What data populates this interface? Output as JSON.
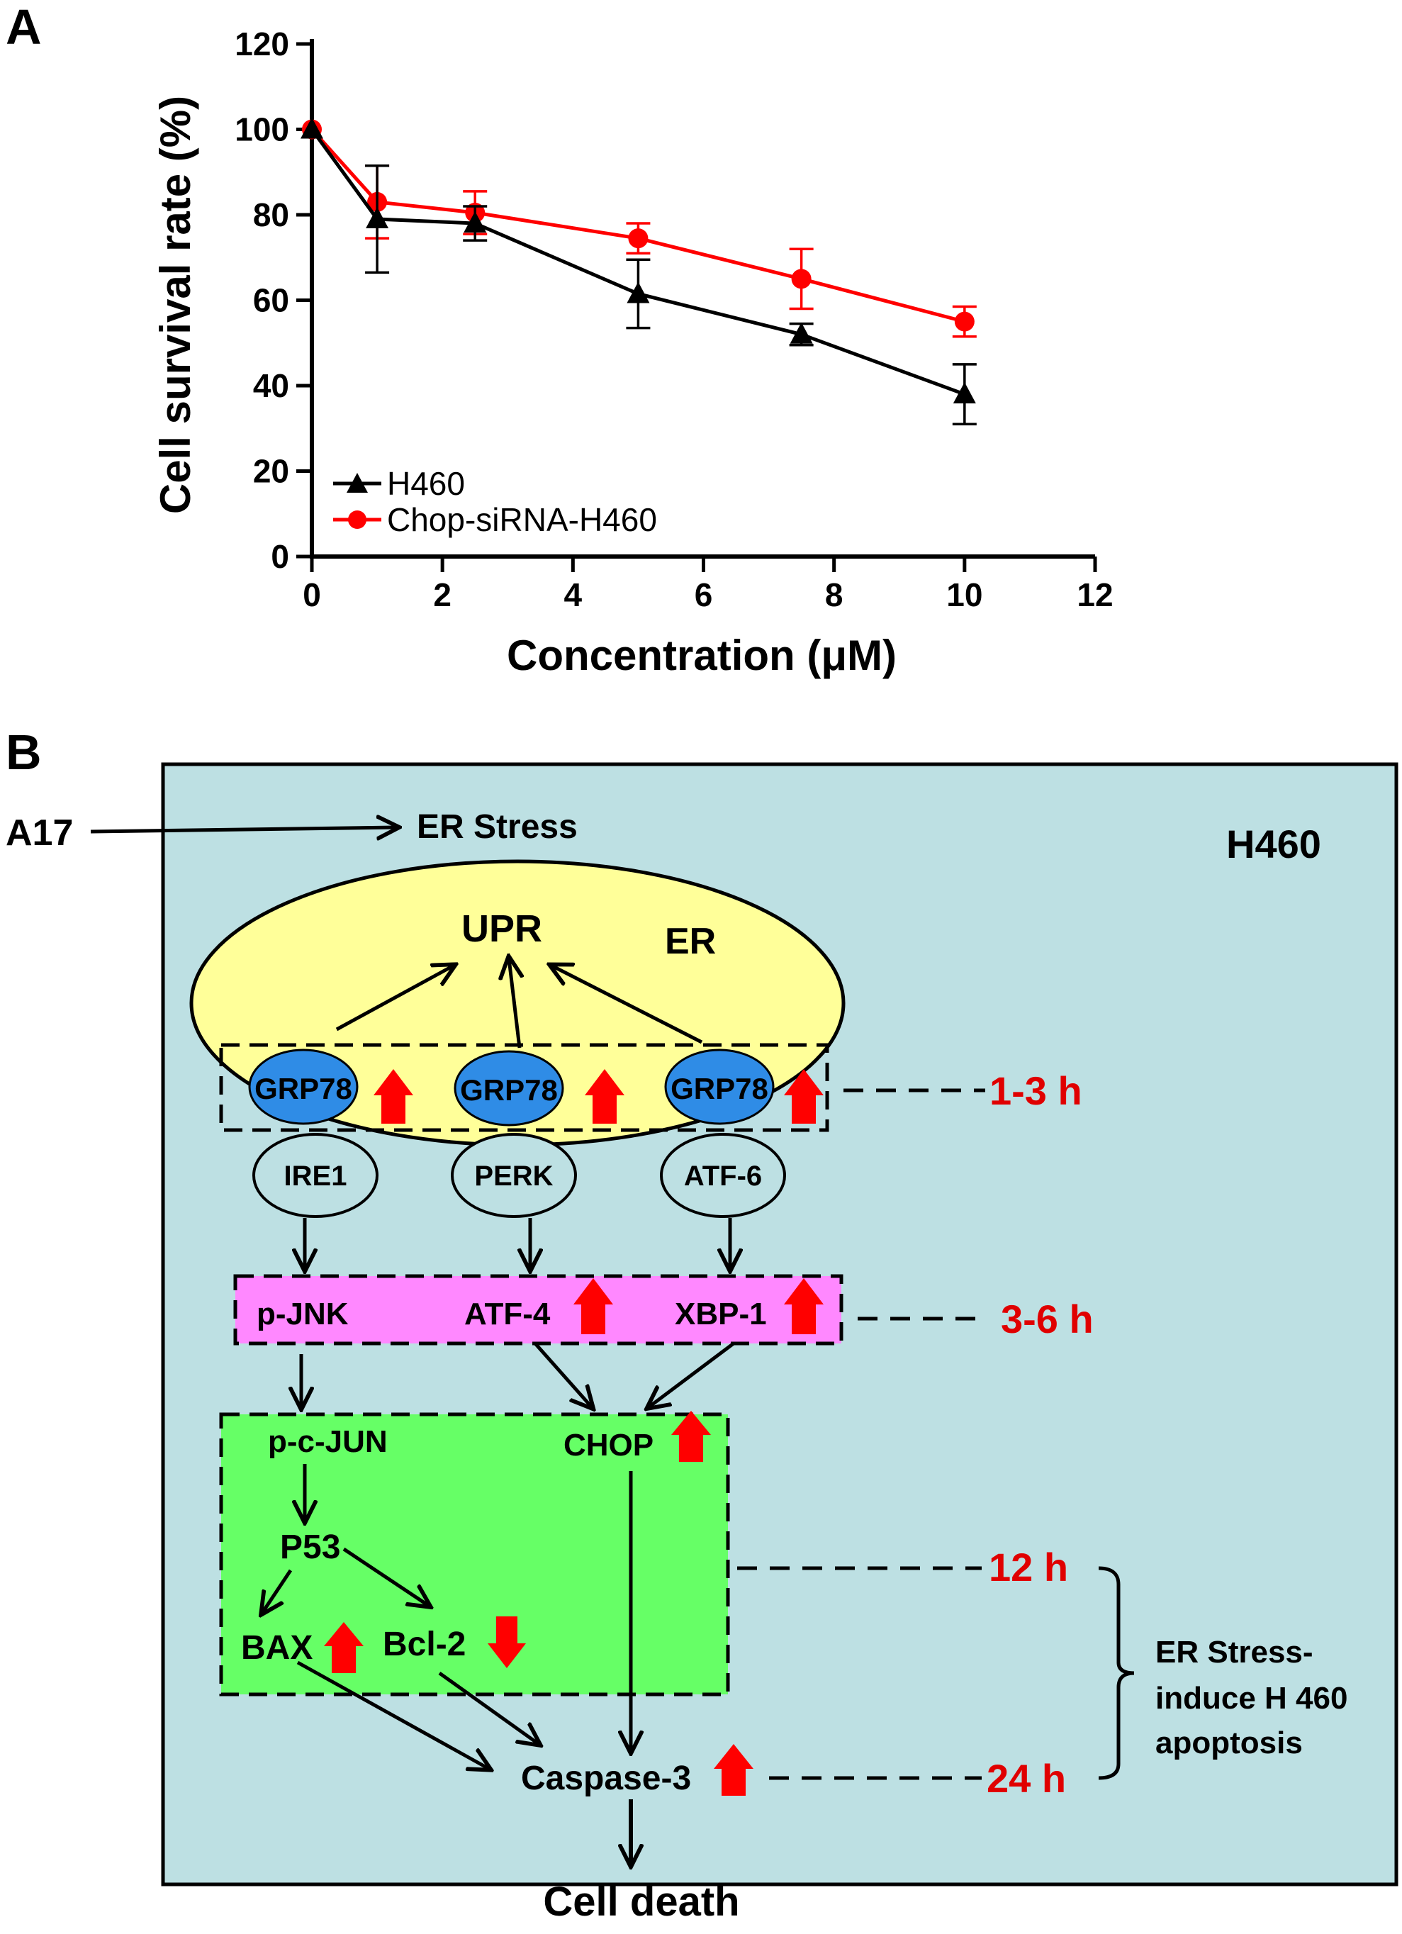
{
  "panel_a": {
    "label": "A"
  },
  "panel_b": {
    "label": "B"
  },
  "chart_data": {
    "type": "line",
    "xlabel": "Concentration  (μM)",
    "ylabel": "Cell survival rate (%)",
    "xlim": [
      0,
      12
    ],
    "ylim": [
      0,
      120
    ],
    "xticks": [
      "0",
      "2",
      "4",
      "6",
      "8",
      "10",
      "12"
    ],
    "yticks": [
      "0",
      "20",
      "40",
      "60",
      "80",
      "100",
      "120"
    ],
    "grid": false,
    "legend_position": "bottom-left",
    "series": [
      {
        "name": "H460",
        "color": "#000000",
        "marker": "triangle",
        "x": [
          0,
          1,
          2.5,
          5,
          7.5,
          10
        ],
        "y": [
          100,
          79,
          78,
          61.5,
          52,
          38
        ],
        "err": [
          0,
          12.5,
          4,
          8,
          2.5,
          7
        ]
      },
      {
        "name": "Chop-siRNA-H460",
        "color": "#ff0000",
        "marker": "circle",
        "x": [
          0,
          1,
          2.5,
          5,
          7.5,
          10
        ],
        "y": [
          100,
          83,
          80.5,
          74.5,
          65,
          55
        ],
        "err": [
          0,
          8.5,
          5,
          3.5,
          7,
          3.5
        ]
      }
    ]
  },
  "diagram": {
    "input": "A17",
    "stress": "ER Stress",
    "cell_line": "H460",
    "er_label": "ER",
    "upr": "UPR",
    "grp78": "GRP78",
    "sensors": [
      "IRE1",
      "PERK",
      "ATF-6"
    ],
    "mid_nodes": [
      "p-JNK",
      "ATF-4",
      "XBP-1"
    ],
    "green_nodes": [
      "p-c-JUN",
      "CHOP",
      "P53",
      "BAX",
      "Bcl-2"
    ],
    "caspase": "Caspase-3",
    "outcome": "Cell death",
    "times": [
      "1-3 h",
      "3-6 h",
      "12 h",
      "24 h"
    ],
    "bracket_label": [
      "ER  Stress-",
      "induce H 460",
      "apoptosis"
    ],
    "colors": {
      "cell_bg": "#bde0e3",
      "er_fill": "#ffff99",
      "grp_fill": "#2f8ce6",
      "mid_fill": "#ff88ff",
      "green_fill": "#66ff66",
      "red": "#ff0000"
    }
  }
}
